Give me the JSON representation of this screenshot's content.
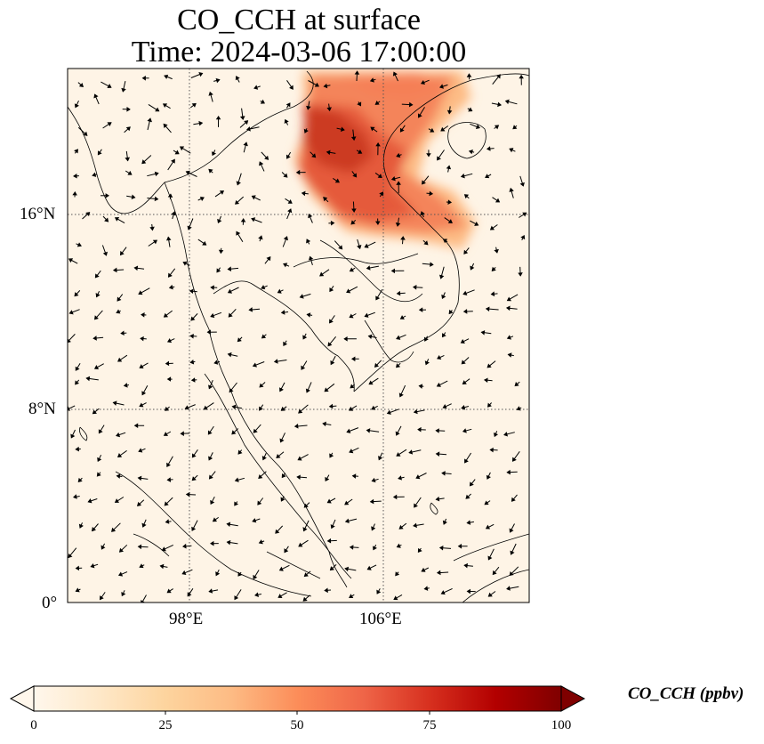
{
  "title": {
    "line1": "CO_CCH at surface",
    "line2": "Time: 2024-03-06 17:00:00"
  },
  "map": {
    "lat_range": [
      0,
      22
    ],
    "lon_range": [
      93,
      112
    ],
    "lat_labels": [
      "16°N",
      "8°N",
      "0°"
    ],
    "lon_labels": [
      "98°E",
      "106°E"
    ],
    "gridlines": true,
    "gridline_style": "dotted"
  },
  "colorbar": {
    "label": "CO_CCH (ppbv)",
    "ticks": [
      "0",
      "25",
      "50",
      "75",
      "100"
    ],
    "min": 0,
    "max": 100,
    "extend": "both",
    "colormap": "OrRd",
    "colors": [
      "#fff7ec",
      "#fee8c8",
      "#fdd49e",
      "#fdbb84",
      "#fc8d59",
      "#ef6548",
      "#d7301f",
      "#b30000",
      "#7f0000"
    ]
  }
}
